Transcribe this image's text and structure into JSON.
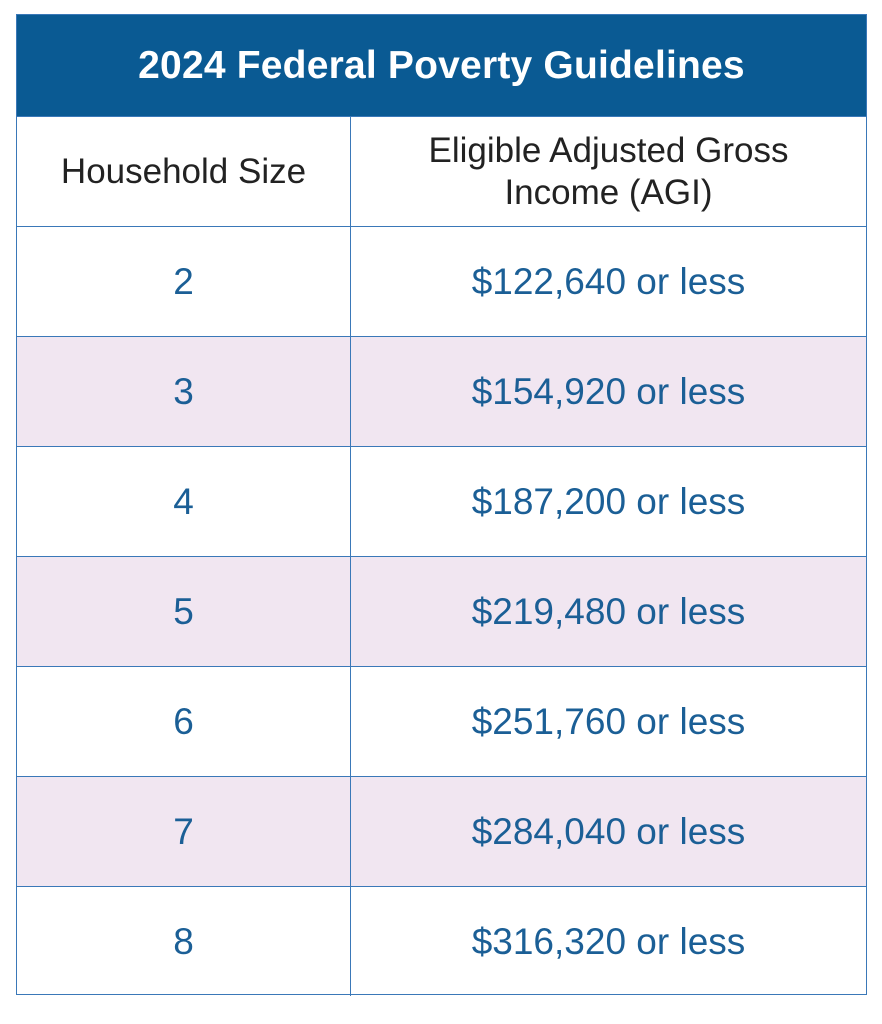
{
  "table": {
    "title": "2024 Federal Poverty Guidelines",
    "headers": {
      "household_size": "Household Size",
      "agi": "Eligible Adjusted Gross Income (AGI)"
    },
    "rows": [
      {
        "size": "2",
        "income": "$122,640 or less"
      },
      {
        "size": "3",
        "income": "$154,920 or less"
      },
      {
        "size": "4",
        "income": "$187,200 or less"
      },
      {
        "size": "5",
        "income": "$219,480 or less"
      },
      {
        "size": "6",
        "income": "$251,760 or less"
      },
      {
        "size": "7",
        "income": "$284,040 or less"
      },
      {
        "size": "8",
        "income": "$316,320 or less"
      }
    ]
  },
  "colors": {
    "title_bg": "#0a5a93",
    "border": "#3a78b8",
    "shaded_row": "#f1e6f1",
    "value_text": "#1b5f96"
  }
}
